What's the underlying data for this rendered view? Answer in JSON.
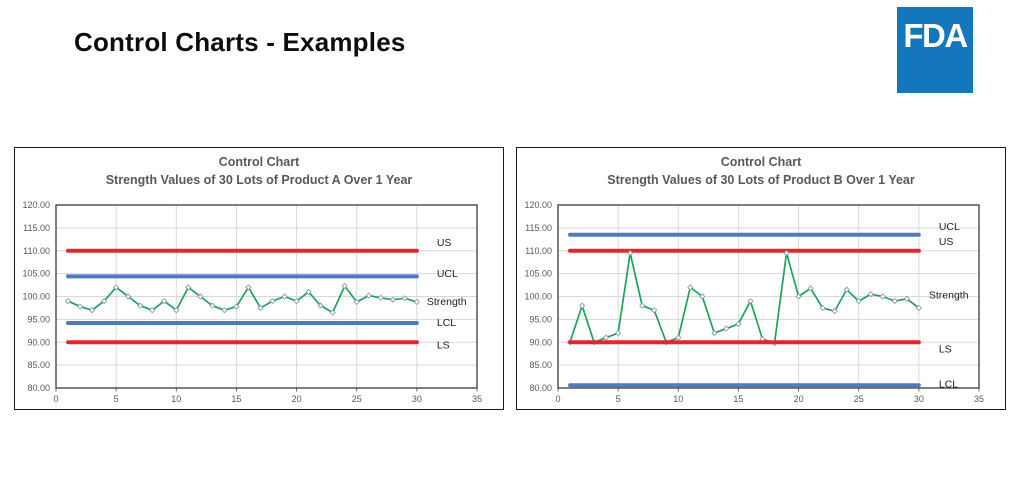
{
  "slide": {
    "title": "Control Charts - Examples",
    "logo": {
      "text": "FDA",
      "bg_color": "#1577BB",
      "text_color": "#FFFFFF"
    }
  },
  "colors": {
    "limit_red": "#E3252C",
    "control_blue": "#4E7AC2",
    "strength_green": "#1AA45A",
    "marker_fill": "#FFFFFF",
    "marker_stroke": "#8E9AA6",
    "grid": "#D9D9D9",
    "plot_border": "#3A3A3A",
    "axis_text": "#595959",
    "label_text": "#1F1F1F"
  },
  "chart_data": [
    {
      "type": "line",
      "title": "Control Chart",
      "subtitle": "Strength Values of 30 Lots of Product A Over 1 Year",
      "xlim": [
        0,
        35
      ],
      "ylim": [
        80,
        120
      ],
      "grid": true,
      "legend_position": "end-of-line-labels",
      "x_ticks": [
        "0",
        "5",
        "10",
        "15",
        "20",
        "25",
        "30",
        "35"
      ],
      "y_ticks": [
        "80.00",
        "85.00",
        "90.00",
        "95.00",
        "100.00",
        "105.00",
        "110.00",
        "115.00",
        "120.00"
      ],
      "x": [
        1,
        2,
        3,
        4,
        5,
        6,
        7,
        8,
        9,
        10,
        11,
        12,
        13,
        14,
        15,
        16,
        17,
        18,
        19,
        20,
        21,
        22,
        23,
        24,
        25,
        26,
        27,
        28,
        29,
        30
      ],
      "series": [
        {
          "name": "US",
          "label": "US",
          "kind": "limit",
          "value": 110,
          "color_key": "limit_red",
          "label_value": 111.8
        },
        {
          "name": "UCL",
          "label": "UCL",
          "kind": "limit",
          "value": 104.4,
          "color_key": "control_blue",
          "label_value": 105.0
        },
        {
          "name": "Strength",
          "label": "Strength",
          "kind": "data",
          "color_key": "strength_green",
          "label_value": 98.9,
          "values": [
            99,
            97.8,
            97,
            99,
            102,
            100,
            98,
            97,
            99,
            97,
            102,
            100,
            98,
            97,
            97.8,
            102,
            97.5,
            99,
            100,
            99,
            101,
            98,
            96.5,
            102.3,
            98.8,
            100.2,
            99.7,
            99.3,
            99.6,
            98.8
          ]
        },
        {
          "name": "LCL",
          "label": "LCL",
          "kind": "limit",
          "value": 94.2,
          "color_key": "control_blue",
          "label_value": 94.3
        },
        {
          "name": "LS",
          "label": "LS",
          "kind": "limit",
          "value": 90,
          "color_key": "limit_red",
          "label_value": 89.4
        }
      ]
    },
    {
      "type": "line",
      "title": "Control Chart",
      "subtitle": "Strength Values of 30 Lots of Product B Over 1 Year",
      "xlim": [
        0,
        35
      ],
      "ylim": [
        80,
        120
      ],
      "grid": true,
      "legend_position": "end-of-line-labels",
      "x_ticks": [
        "0",
        "5",
        "10",
        "15",
        "20",
        "25",
        "30",
        "35"
      ],
      "y_ticks": [
        "80.00",
        "85.00",
        "90.00",
        "95.00",
        "100.00",
        "105.00",
        "110.00",
        "115.00",
        "120.00"
      ],
      "x": [
        1,
        2,
        3,
        4,
        5,
        6,
        7,
        8,
        9,
        10,
        11,
        12,
        13,
        14,
        15,
        16,
        17,
        18,
        19,
        20,
        21,
        22,
        23,
        24,
        25,
        26,
        27,
        28,
        29,
        30
      ],
      "series": [
        {
          "name": "UCL",
          "label": "UCL",
          "kind": "limit",
          "value": 113.5,
          "color_key": "control_blue",
          "label_value": 115.3
        },
        {
          "name": "US",
          "label": "US",
          "kind": "limit",
          "value": 110,
          "color_key": "limit_red",
          "label_value": 112.0
        },
        {
          "name": "Strength",
          "label": "Strength",
          "kind": "data",
          "color_key": "strength_green",
          "label_value": 100.3,
          "values": [
            90,
            98,
            90,
            91,
            92,
            109.5,
            98,
            97,
            90,
            91,
            102,
            100,
            92,
            93,
            94,
            99,
            90.7,
            89.8,
            109.5,
            100,
            101.8,
            97.5,
            96.8,
            101.5,
            99,
            100.5,
            100,
            99,
            99.5,
            97.5
          ]
        },
        {
          "name": "LS",
          "label": "LS",
          "kind": "limit",
          "value": 90,
          "color_key": "limit_red",
          "label_value": 88.5
        },
        {
          "name": "LCL",
          "label": "LCL",
          "kind": "limit",
          "value": 80.6,
          "color_key": "control_blue",
          "label_value": 80.9
        }
      ]
    }
  ]
}
